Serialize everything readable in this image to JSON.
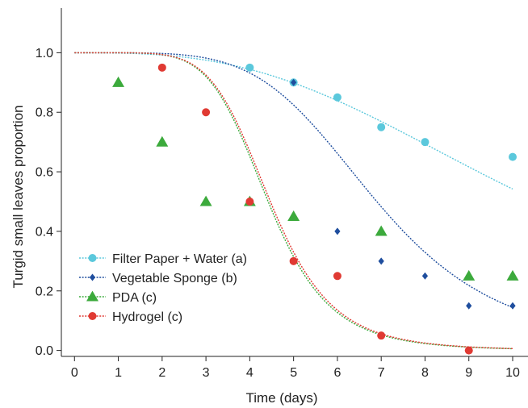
{
  "chart_data": {
    "type": "scatter",
    "xlabel": "Time (days)",
    "ylabel": "Turgid small leaves proportion",
    "xlim": [
      -0.3,
      10.35
    ],
    "ylim": [
      -0.02,
      1.15
    ],
    "xticks": [
      0,
      1,
      2,
      3,
      4,
      5,
      6,
      7,
      8,
      9,
      10
    ],
    "yticks": [
      0.0,
      0.2,
      0.4,
      0.6,
      0.8,
      1.0
    ],
    "ytick_labels": [
      "0.0",
      "0.2",
      "0.4",
      "0.6",
      "0.8",
      "1.0"
    ],
    "grid": false,
    "legend_position": "bottom-left",
    "series": [
      {
        "name": "Filter Paper + Water (a)",
        "marker": "circle",
        "color": "#5bc8dc",
        "x": [
          4,
          5,
          6,
          7,
          8,
          10
        ],
        "y": [
          0.95,
          0.9,
          0.85,
          0.75,
          0.7,
          0.65
        ],
        "fit": {
          "x50": 10.6,
          "k": 2.9
        }
      },
      {
        "name": "Vegetable Sponge (b)",
        "marker": "diamond",
        "color": "#1f4e9e",
        "x": [
          5,
          6,
          7,
          8,
          9,
          10
        ],
        "y": [
          0.9,
          0.4,
          0.3,
          0.25,
          0.15,
          0.15
        ],
        "fit": {
          "x50": 6.9,
          "k": 4.8
        }
      },
      {
        "name": "PDA (c)",
        "marker": "triangle",
        "color": "#3caa3c",
        "x": [
          1,
          2,
          3,
          4,
          5,
          7,
          9,
          10
        ],
        "y": [
          0.9,
          0.7,
          0.5,
          0.5,
          0.45,
          0.4,
          0.25,
          0.25
        ],
        "fit": {
          "x50": 4.42,
          "k": 6.3
        }
      },
      {
        "name": "Hydrogel (c)",
        "marker": "circle",
        "color": "#e03a33",
        "x": [
          2,
          3,
          4,
          5,
          6,
          7,
          9
        ],
        "y": [
          0.95,
          0.8,
          0.5,
          0.3,
          0.25,
          0.05,
          0.0
        ],
        "fit": {
          "x50": 4.47,
          "k": 6.3
        }
      }
    ]
  }
}
